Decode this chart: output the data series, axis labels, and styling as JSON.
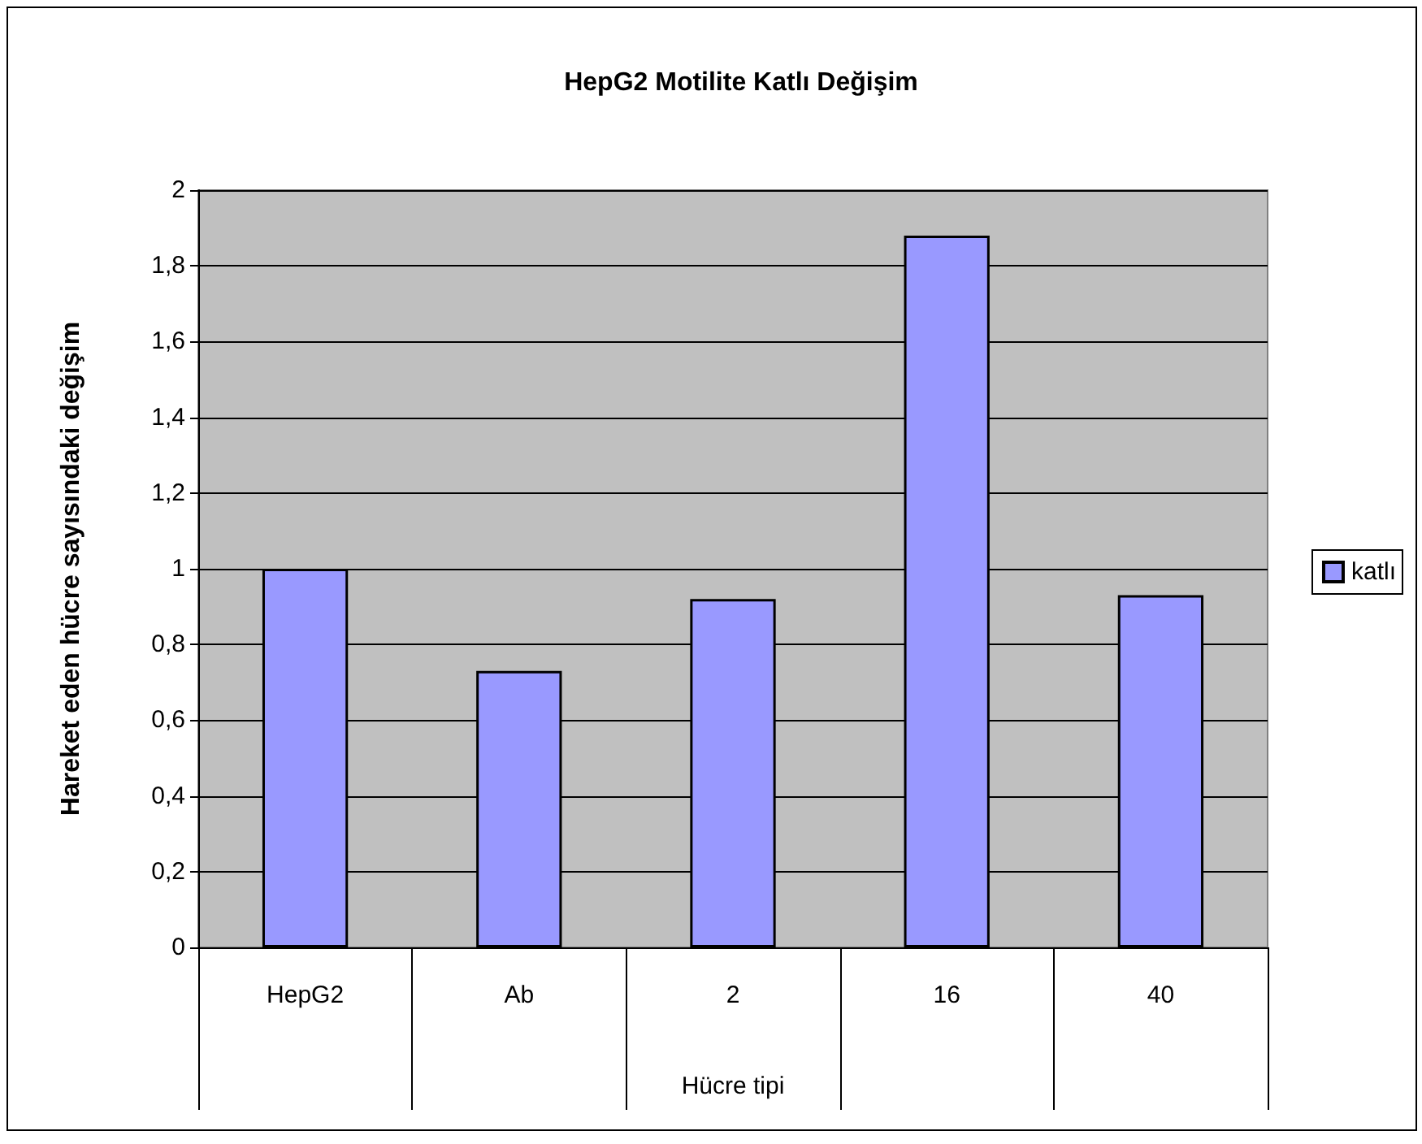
{
  "chart_data": {
    "type": "bar",
    "title": "HepG2 Motilite Katlı Değişim",
    "xlabel": "Hücre tipi",
    "ylabel": "Hareket eden hücre sayısındaki değişim",
    "categories": [
      "HepG2",
      "Ab",
      "2",
      "16",
      "40"
    ],
    "series": [
      {
        "name": "katlı",
        "color": "#9999ff",
        "values": [
          1.0,
          0.73,
          0.92,
          1.88,
          0.93
        ]
      }
    ],
    "ylim": [
      0,
      2
    ],
    "yticks": [
      0,
      {
        "value": 0.2,
        "label": "0,2"
      },
      {
        "value": 0.4,
        "label": "0,4"
      },
      {
        "value": 0.6,
        "label": "0,6"
      },
      {
        "value": 0.8,
        "label": "0,8"
      },
      1,
      {
        "value": 1.2,
        "label": "1,2"
      },
      {
        "value": 1.4,
        "label": "1,4"
      },
      {
        "value": 1.6,
        "label": "1,6"
      },
      {
        "value": 1.8,
        "label": "1,8"
      },
      2
    ],
    "grid": "y",
    "legend": "right"
  }
}
